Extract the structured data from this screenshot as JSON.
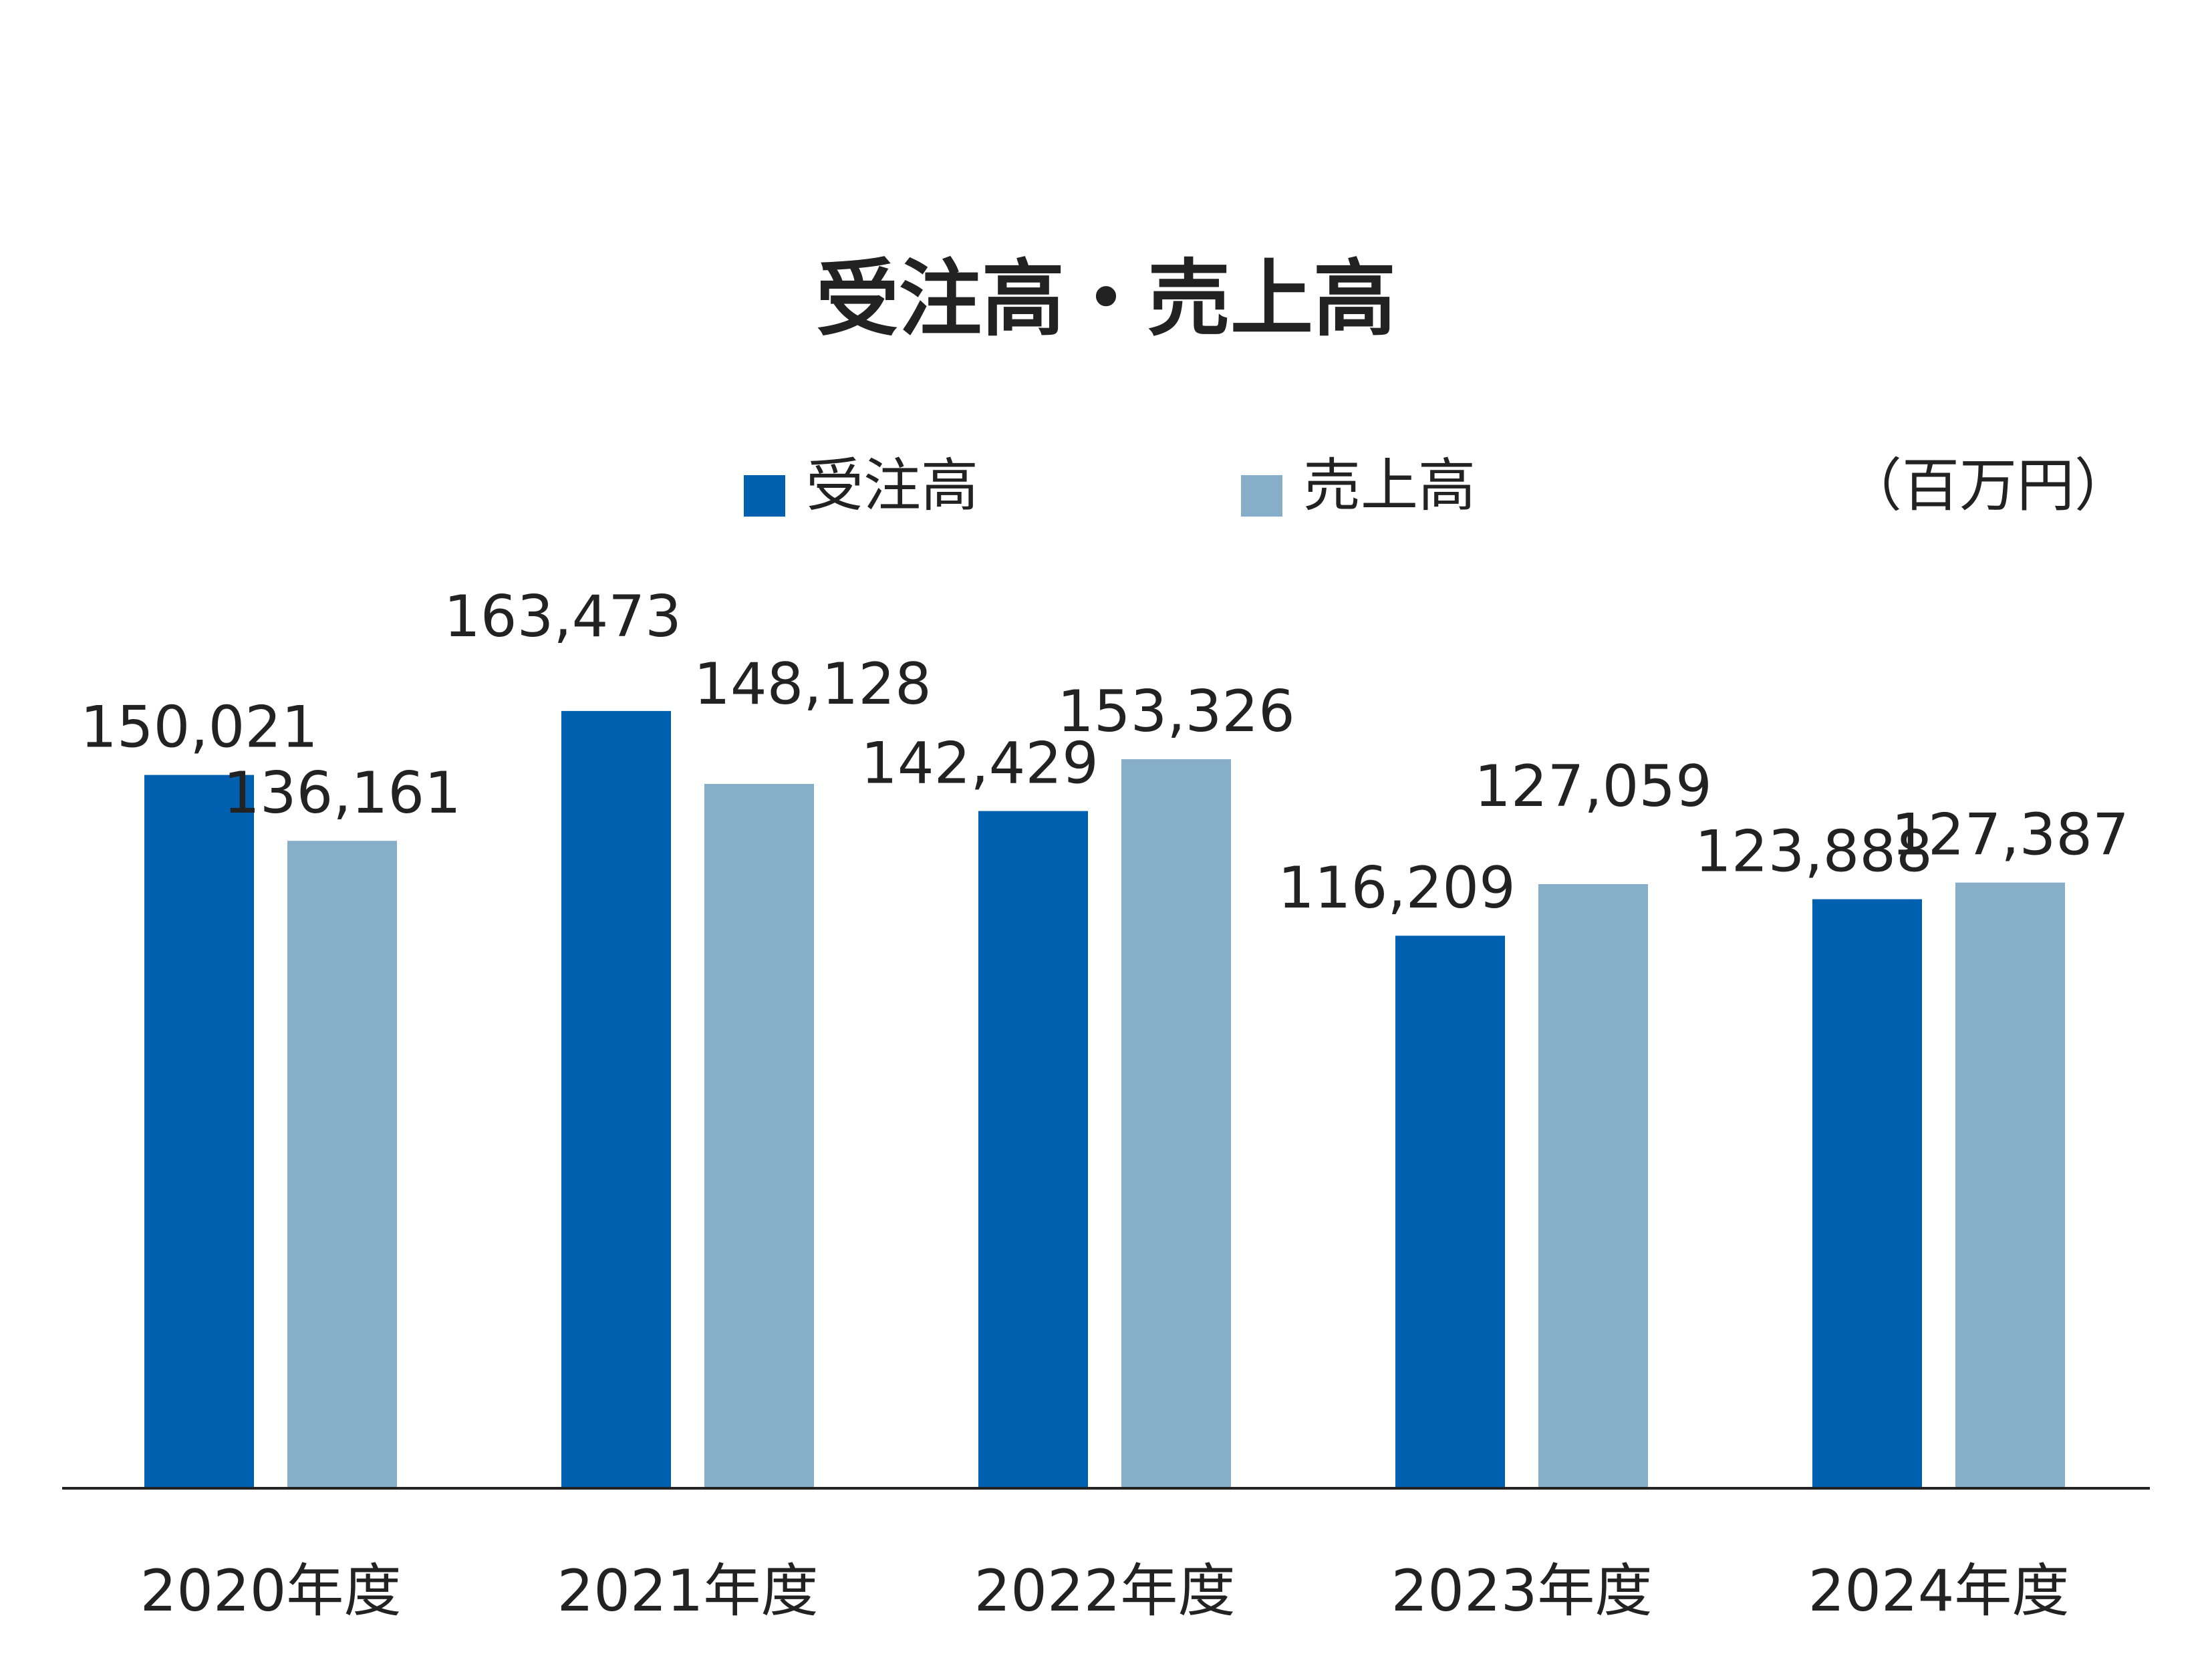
{
  "chart_data": {
    "type": "bar",
    "title": "受注高・売上高",
    "unit": "（百万円）",
    "categories": [
      "2020年度",
      "2021年度",
      "2022年度",
      "2023年度",
      "2024年度"
    ],
    "series": [
      {
        "name": "受注高",
        "color": "#0060B0",
        "values": [
          150021,
          163473,
          142429,
          116209,
          123888
        ],
        "labels": [
          "150,021",
          "163,473",
          "142,429",
          "116,209",
          "123,888"
        ]
      },
      {
        "name": "売上高",
        "color": "#86AEC8",
        "values": [
          136161,
          148128,
          153326,
          127059,
          127387
        ],
        "labels": [
          "136,161",
          "148,128",
          "153,326",
          "127,059",
          "127,387"
        ]
      }
    ],
    "ylim": [
      0,
      164000
    ],
    "grid": false,
    "legend": "top-center",
    "axis_color": "#222222"
  }
}
